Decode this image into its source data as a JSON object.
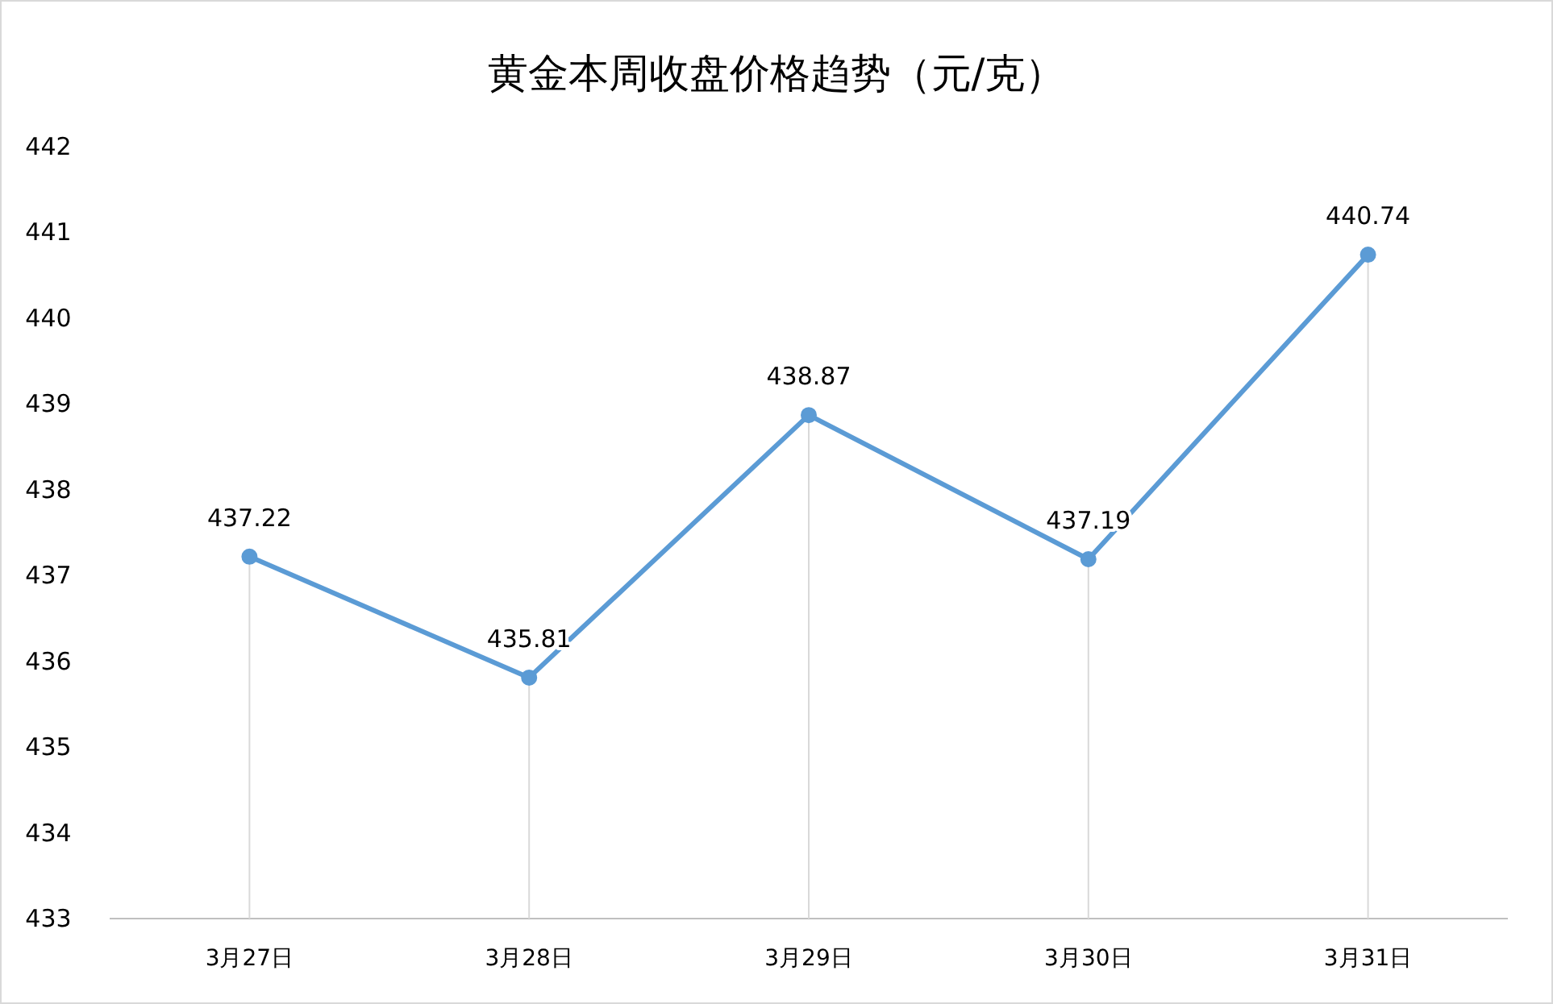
{
  "chart_data": {
    "type": "line",
    "title": "黄金本周收盘价格趋势（元/克）",
    "categories": [
      "3月27日",
      "3月28日",
      "3月29日",
      "3月30日",
      "3月31日"
    ],
    "series": [
      {
        "color": "#5b9bd5",
        "values": [
          437.22,
          435.81,
          438.87,
          437.19,
          440.74
        ]
      }
    ],
    "ylim": [
      433,
      442
    ],
    "yticks": [
      433,
      434,
      435,
      436,
      437,
      438,
      439,
      440,
      441,
      442
    ],
    "grid": "x",
    "marker": "circle",
    "line_style": "solid",
    "data_labels": true
  }
}
